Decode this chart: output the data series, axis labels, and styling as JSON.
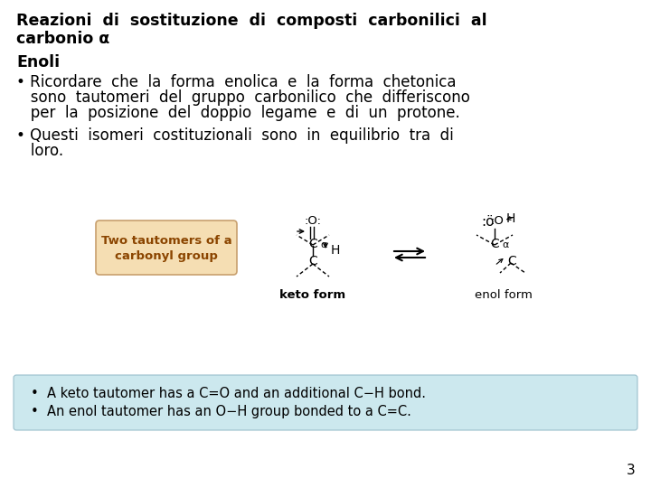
{
  "background_color": "#ffffff",
  "title_line1": "Reazioni  di  sostituzione  di  composti  carbonilici  al",
  "title_line2": "carbonio α",
  "subtitle": "Enoli",
  "bullet1_line1": "• Ricordare  che  la  forma  enolica  e  la  forma  chetonica",
  "bullet1_line2": "   sono  tautomeri  del  gruppo  carbonilico  che  differiscono",
  "bullet1_line3": "   per  la  posizione  del  doppio  legame  e  di  un  protone.",
  "bullet2_line1": "• Questi  isomeri  costituzionali  sono  in  equilibrio  tra  di",
  "bullet2_line2": "   loro.",
  "box_label_line1": "Two tautomers of a",
  "box_label_line2": "carbonyl group",
  "keto_label": "keto form",
  "enol_label": "enol form",
  "footnote_line1": "•  A keto tautomer has a C=O and an additional C−H bond.",
  "footnote_line2": "•  An enol tautomer has an O−H group bonded to a C=C.",
  "page_number": "3",
  "title_fontsize": 12.5,
  "body_fontsize": 12,
  "footnote_fontsize": 10.5,
  "box_bg": "#f5deb3",
  "box_border": "#c8a06e",
  "footnote_bg": "#cce8ee",
  "text_color": "#000000"
}
